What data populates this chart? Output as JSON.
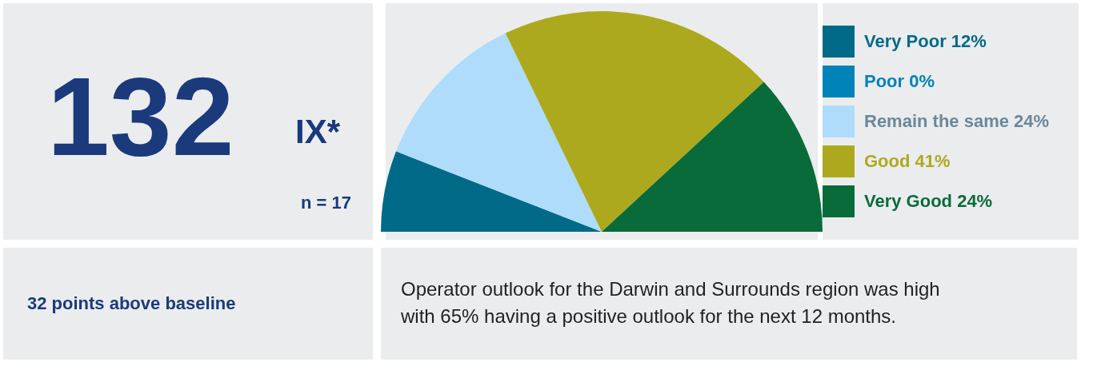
{
  "chart_data": [
    {
      "type": "other",
      "title": "132",
      "subtitle": "IX*",
      "annotations": [
        "n = 17"
      ]
    },
    {
      "type": "pie",
      "categories": [
        "Very Poor",
        "Poor",
        "Remain the same",
        "Good",
        "Very Good"
      ],
      "values": [
        12,
        0,
        24,
        41,
        24
      ],
      "value_labels": [
        "12%",
        "0%",
        "24%",
        "41%",
        "24%"
      ],
      "colors": [
        "#006a88",
        "#0083b8",
        "#aedcfa",
        "#ada91e",
        "#0a6b3a"
      ],
      "legend": "right"
    },
    {
      "type": "other",
      "annotations": [
        "32 points above baseline"
      ]
    },
    {
      "type": "other",
      "annotations": [
        "Operator outlook for the Darwin and Surrounds region was high",
        "with 65% having a positive outlook for the next 12 months."
      ]
    }
  ]
}
